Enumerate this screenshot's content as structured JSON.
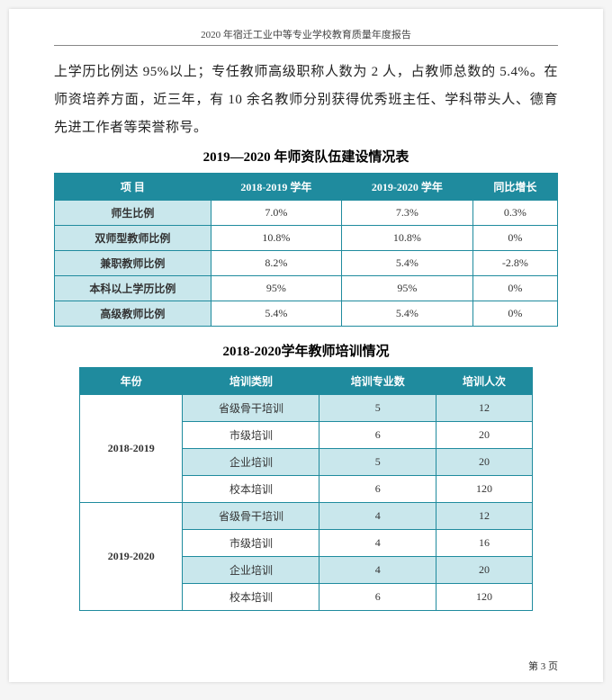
{
  "header": "2020 年宿迁工业中等专业学校教育质量年度报告",
  "body_text": "上学历比例达 95%以上；专任教师高级职称人数为 2 人，占教师总数的 5.4%。在师资培养方面，近三年，有 10 余名教师分别获得优秀班主任、学科带头人、德育先进工作者等荣誉称号。",
  "table1": {
    "title": "2019—2020 年师资队伍建设情况表",
    "columns": [
      "项 目",
      "2018-2019 学年",
      "2019-2020 学年",
      "同比增长"
    ],
    "rows": [
      [
        "师生比例",
        "7.0%",
        "7.3%",
        "0.3%"
      ],
      [
        "双师型教师比例",
        "10.8%",
        "10.8%",
        "0%"
      ],
      [
        "兼职教师比例",
        "8.2%",
        "5.4%",
        "-2.8%"
      ],
      [
        "本科以上学历比例",
        "95%",
        "95%",
        "0%"
      ],
      [
        "高级教师比例",
        "5.4%",
        "5.4%",
        "0%"
      ]
    ],
    "header_bg": "#1f8b9e",
    "label_bg": "#c9e7ec",
    "border_color": "#1f8b9e"
  },
  "table2": {
    "title": "2018-2020学年教师培训情况",
    "columns": [
      "年份",
      "培训类别",
      "培训专业数",
      "培训人次"
    ],
    "groups": [
      {
        "year": "2018-2019",
        "rows": [
          [
            "省级骨干培训",
            "5",
            "12"
          ],
          [
            "市级培训",
            "6",
            "20"
          ],
          [
            "企业培训",
            "5",
            "20"
          ],
          [
            "校本培训",
            "6",
            "120"
          ]
        ]
      },
      {
        "year": "2019-2020",
        "rows": [
          [
            "省级骨干培训",
            "4",
            "12"
          ],
          [
            "市级培训",
            "4",
            "16"
          ],
          [
            "企业培训",
            "4",
            "20"
          ],
          [
            "校本培训",
            "6",
            "120"
          ]
        ]
      }
    ],
    "header_bg": "#1f8b9e",
    "cell_bg": "#c9e7ec",
    "border_color": "#1f8b9e"
  },
  "footer": "第 3 页"
}
